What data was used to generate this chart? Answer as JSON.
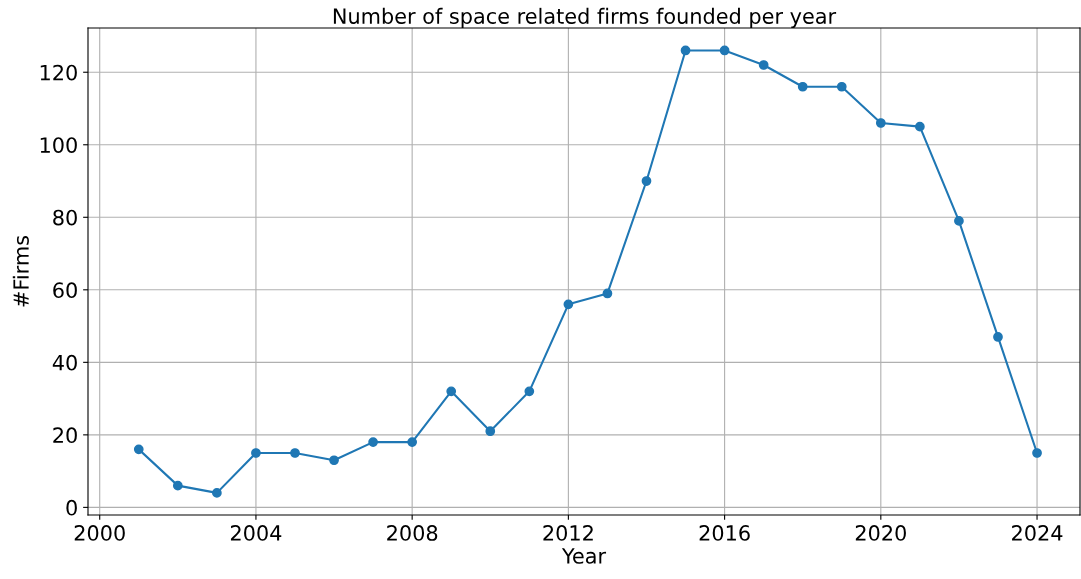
{
  "chart_data": {
    "type": "line",
    "title": "Number of space related firms founded per year",
    "xlabel": "Year",
    "ylabel": "#Firms",
    "x": [
      2001,
      2002,
      2003,
      2004,
      2005,
      2006,
      2007,
      2008,
      2009,
      2010,
      2011,
      2012,
      2013,
      2014,
      2015,
      2016,
      2017,
      2018,
      2019,
      2020,
      2021,
      2022,
      2023,
      2024
    ],
    "series": [
      {
        "color": "#1f77b4",
        "values": [
          16,
          6,
          4,
          15,
          15,
          13,
          18,
          18,
          32,
          21,
          32,
          56,
          59,
          90,
          126,
          126,
          122,
          116,
          116,
          106,
          105,
          79,
          47,
          15
        ]
      }
    ],
    "xlim": [
      1999.7,
      2025.1
    ],
    "xticks": [
      2000,
      2004,
      2008,
      2012,
      2016,
      2020,
      2024
    ],
    "ylim": [
      -2.1,
      132.2
    ],
    "yticks": [
      0,
      20,
      40,
      60,
      80,
      100,
      120
    ],
    "grid": true,
    "marker": "circle",
    "line_style": "solid",
    "legend": false
  }
}
